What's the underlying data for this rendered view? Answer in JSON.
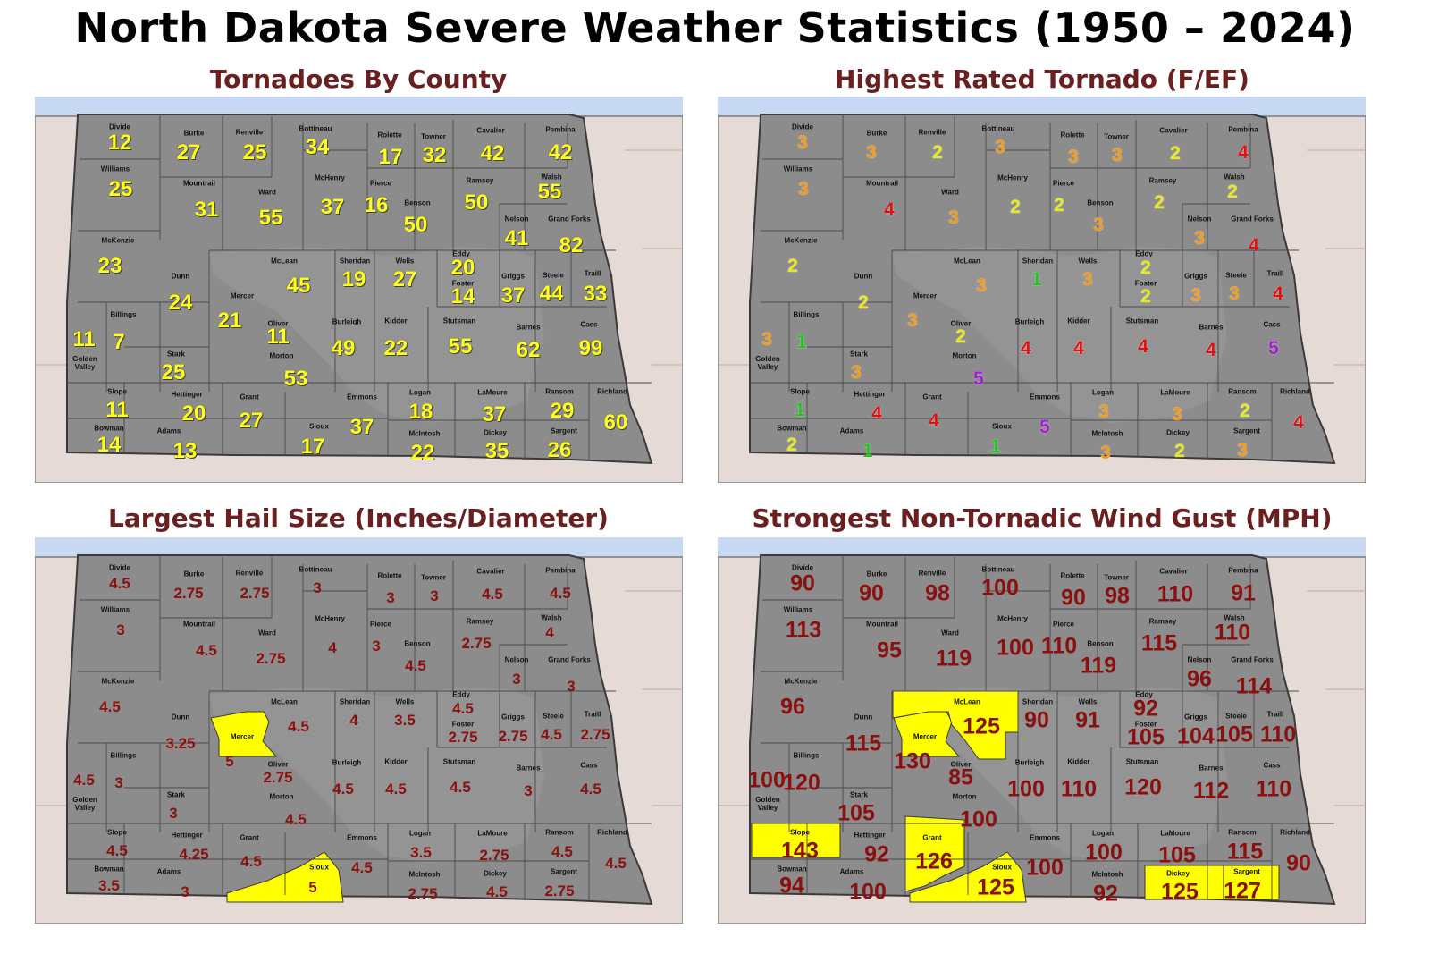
{
  "title": "North Dakota Severe Weather Statistics (1950 – 2024)",
  "colors": {
    "lake": "#c6d8f2",
    "land": "#e6dad6",
    "state": "#8c8c8c",
    "highlight": "#ffff00",
    "title_panel": "#6a2020",
    "tornado_count": "#ffff1a",
    "value_red": "#8b1010",
    "rating_1": "#22c522",
    "rating_2": "#e8e820",
    "rating_3": "#f29a1a",
    "rating_4": "#e01010",
    "rating_5": "#a020d0"
  },
  "panels": [
    {
      "id": "tornadoes",
      "title": "Tornadoes By County",
      "legend": "",
      "counties": [
        {
          "name": "Divide",
          "value": "12"
        },
        {
          "name": "Burke",
          "value": "27"
        },
        {
          "name": "Renville",
          "value": "25"
        },
        {
          "name": "Bottineau",
          "value": "34"
        },
        {
          "name": "Rolette",
          "value": "17"
        },
        {
          "name": "Towner",
          "value": "32"
        },
        {
          "name": "Cavalier",
          "value": "42"
        },
        {
          "name": "Pembina",
          "value": "42"
        },
        {
          "name": "Williams",
          "value": "25"
        },
        {
          "name": "Mountrail",
          "value": "31"
        },
        {
          "name": "Ward",
          "value": "55"
        },
        {
          "name": "McHenry",
          "value": "37"
        },
        {
          "name": "Pierce",
          "value": "16"
        },
        {
          "name": "Benson",
          "value": "50"
        },
        {
          "name": "Ramsey",
          "value": "50"
        },
        {
          "name": "Walsh",
          "value": "55"
        },
        {
          "name": "Nelson",
          "value": "41"
        },
        {
          "name": "Grand Forks",
          "value": "82"
        },
        {
          "name": "McKenzie",
          "value": "23"
        },
        {
          "name": "Dunn",
          "value": "24"
        },
        {
          "name": "Mercer",
          "value": "21"
        },
        {
          "name": "McLean",
          "value": "45"
        },
        {
          "name": "Sheridan",
          "value": "19"
        },
        {
          "name": "Wells",
          "value": "27"
        },
        {
          "name": "Eddy",
          "value": "20"
        },
        {
          "name": "Foster",
          "value": "14"
        },
        {
          "name": "Griggs",
          "value": "37"
        },
        {
          "name": "Steele",
          "value": "44"
        },
        {
          "name": "Traill",
          "value": "33"
        },
        {
          "name": "Golden Valley",
          "value": "11"
        },
        {
          "name": "Billings",
          "value": "7"
        },
        {
          "name": "Oliver",
          "value": "11"
        },
        {
          "name": "Burleigh",
          "value": "49"
        },
        {
          "name": "Kidder",
          "value": "22"
        },
        {
          "name": "Stutsman",
          "value": "55"
        },
        {
          "name": "Barnes",
          "value": "62"
        },
        {
          "name": "Cass",
          "value": "99"
        },
        {
          "name": "Stark",
          "value": "25"
        },
        {
          "name": "Morton",
          "value": "53"
        },
        {
          "name": "Slope",
          "value": "11"
        },
        {
          "name": "Hettinger",
          "value": "20"
        },
        {
          "name": "Grant",
          "value": "27"
        },
        {
          "name": "Emmons",
          "value": "37"
        },
        {
          "name": "Logan",
          "value": "18"
        },
        {
          "name": "LaMoure",
          "value": "37"
        },
        {
          "name": "Ransom",
          "value": "29"
        },
        {
          "name": "Richland",
          "value": "60"
        },
        {
          "name": "Bowman",
          "value": "14"
        },
        {
          "name": "Adams",
          "value": "13"
        },
        {
          "name": "Sioux",
          "value": "17"
        },
        {
          "name": "McIntosh",
          "value": "22"
        },
        {
          "name": "Dickey",
          "value": "35"
        },
        {
          "name": "Sargent",
          "value": "26"
        }
      ]
    },
    {
      "id": "rating",
      "title": "Highest Rated Tornado (F/EF)",
      "legend": "",
      "counties": [
        {
          "name": "Divide",
          "value": "3"
        },
        {
          "name": "Burke",
          "value": "3"
        },
        {
          "name": "Renville",
          "value": "2"
        },
        {
          "name": "Bottineau",
          "value": "3"
        },
        {
          "name": "Rolette",
          "value": "3"
        },
        {
          "name": "Towner",
          "value": "3"
        },
        {
          "name": "Cavalier",
          "value": "2"
        },
        {
          "name": "Pembina",
          "value": "4"
        },
        {
          "name": "Williams",
          "value": "3"
        },
        {
          "name": "Mountrail",
          "value": "4"
        },
        {
          "name": "Ward",
          "value": "3"
        },
        {
          "name": "McHenry",
          "value": "2"
        },
        {
          "name": "Pierce",
          "value": "2"
        },
        {
          "name": "Benson",
          "value": "3"
        },
        {
          "name": "Ramsey",
          "value": "2"
        },
        {
          "name": "Walsh",
          "value": "2"
        },
        {
          "name": "Nelson",
          "value": "3"
        },
        {
          "name": "Grand Forks",
          "value": "4"
        },
        {
          "name": "McKenzie",
          "value": "2"
        },
        {
          "name": "Dunn",
          "value": "2"
        },
        {
          "name": "Mercer",
          "value": "3"
        },
        {
          "name": "McLean",
          "value": "3"
        },
        {
          "name": "Sheridan",
          "value": "1"
        },
        {
          "name": "Wells",
          "value": "3"
        },
        {
          "name": "Eddy",
          "value": "2"
        },
        {
          "name": "Foster",
          "value": "2"
        },
        {
          "name": "Griggs",
          "value": "3"
        },
        {
          "name": "Steele",
          "value": "3"
        },
        {
          "name": "Traill",
          "value": "4"
        },
        {
          "name": "Golden Valley",
          "value": "3"
        },
        {
          "name": "Billings",
          "value": "1"
        },
        {
          "name": "Oliver",
          "value": "2"
        },
        {
          "name": "Burleigh",
          "value": "4"
        },
        {
          "name": "Kidder",
          "value": "4"
        },
        {
          "name": "Stutsman",
          "value": "4"
        },
        {
          "name": "Barnes",
          "value": "4"
        },
        {
          "name": "Cass",
          "value": "5"
        },
        {
          "name": "Stark",
          "value": "3"
        },
        {
          "name": "Morton",
          "value": "5"
        },
        {
          "name": "Slope",
          "value": "1"
        },
        {
          "name": "Hettinger",
          "value": "4"
        },
        {
          "name": "Grant",
          "value": "4"
        },
        {
          "name": "Emmons",
          "value": "5"
        },
        {
          "name": "Logan",
          "value": "3"
        },
        {
          "name": "LaMoure",
          "value": "3"
        },
        {
          "name": "Ransom",
          "value": "2"
        },
        {
          "name": "Richland",
          "value": "4"
        },
        {
          "name": "Bowman",
          "value": "2"
        },
        {
          "name": "Adams",
          "value": "1"
        },
        {
          "name": "Sioux",
          "value": "1"
        },
        {
          "name": "McIntosh",
          "value": "3"
        },
        {
          "name": "Dickey",
          "value": "2"
        },
        {
          "name": "Sargent",
          "value": "3"
        }
      ]
    },
    {
      "id": "hail",
      "title": "Largest Hail Size (Inches/Diameter)",
      "legend": "",
      "counties": [
        {
          "name": "Divide",
          "value": "4.5"
        },
        {
          "name": "Burke",
          "value": "2.75"
        },
        {
          "name": "Renville",
          "value": "2.75"
        },
        {
          "name": "Bottineau",
          "value": "3"
        },
        {
          "name": "Rolette",
          "value": "3"
        },
        {
          "name": "Towner",
          "value": "3"
        },
        {
          "name": "Cavalier",
          "value": "4.5"
        },
        {
          "name": "Pembina",
          "value": "4.5"
        },
        {
          "name": "Williams",
          "value": "3"
        },
        {
          "name": "Mountrail",
          "value": "4.5"
        },
        {
          "name": "Ward",
          "value": "2.75"
        },
        {
          "name": "McHenry",
          "value": "4"
        },
        {
          "name": "Pierce",
          "value": "3"
        },
        {
          "name": "Benson",
          "value": "4.5"
        },
        {
          "name": "Ramsey",
          "value": "2.75"
        },
        {
          "name": "Walsh",
          "value": "4"
        },
        {
          "name": "Nelson",
          "value": "3"
        },
        {
          "name": "Grand Forks",
          "value": "3"
        },
        {
          "name": "McKenzie",
          "value": "4.5"
        },
        {
          "name": "Dunn",
          "value": "3.25"
        },
        {
          "name": "Mercer",
          "value": "5"
        },
        {
          "name": "McLean",
          "value": "4.5"
        },
        {
          "name": "Sheridan",
          "value": "4"
        },
        {
          "name": "Wells",
          "value": "3.5"
        },
        {
          "name": "Eddy",
          "value": "4.5"
        },
        {
          "name": "Foster",
          "value": "2.75"
        },
        {
          "name": "Griggs",
          "value": "2.75"
        },
        {
          "name": "Steele",
          "value": "4.5"
        },
        {
          "name": "Traill",
          "value": "2.75"
        },
        {
          "name": "Golden Valley",
          "value": "4.5"
        },
        {
          "name": "Billings",
          "value": "3"
        },
        {
          "name": "Oliver",
          "value": "2.75"
        },
        {
          "name": "Burleigh",
          "value": "4.5"
        },
        {
          "name": "Kidder",
          "value": "4.5"
        },
        {
          "name": "Stutsman",
          "value": "4.5"
        },
        {
          "name": "Barnes",
          "value": "3"
        },
        {
          "name": "Cass",
          "value": "4.5"
        },
        {
          "name": "Stark",
          "value": "3"
        },
        {
          "name": "Morton",
          "value": "4.5"
        },
        {
          "name": "Slope",
          "value": "4.5"
        },
        {
          "name": "Hettinger",
          "value": "4.25"
        },
        {
          "name": "Grant",
          "value": "4.5"
        },
        {
          "name": "Emmons",
          "value": "4.5"
        },
        {
          "name": "Logan",
          "value": "3.5"
        },
        {
          "name": "LaMoure",
          "value": "2.75"
        },
        {
          "name": "Ransom",
          "value": "4.5"
        },
        {
          "name": "Richland",
          "value": "4.5"
        },
        {
          "name": "Bowman",
          "value": "3.5"
        },
        {
          "name": "Adams",
          "value": "3"
        },
        {
          "name": "Sioux",
          "value": "5"
        },
        {
          "name": "McIntosh",
          "value": "2.75"
        },
        {
          "name": "Dickey",
          "value": "4.5"
        },
        {
          "name": "Sargent",
          "value": "2.75"
        }
      ],
      "highlighted": [
        "Mercer",
        "Sioux"
      ]
    },
    {
      "id": "wind",
      "title": "Strongest Non-Tornadic Wind Gust (MPH)",
      "legend": "",
      "counties": [
        {
          "name": "Divide",
          "value": "90"
        },
        {
          "name": "Burke",
          "value": "90"
        },
        {
          "name": "Renville",
          "value": "98"
        },
        {
          "name": "Bottineau",
          "value": "100"
        },
        {
          "name": "Rolette",
          "value": "90"
        },
        {
          "name": "Towner",
          "value": "98"
        },
        {
          "name": "Cavalier",
          "value": "110"
        },
        {
          "name": "Pembina",
          "value": "91"
        },
        {
          "name": "Williams",
          "value": "113"
        },
        {
          "name": "Mountrail",
          "value": "95"
        },
        {
          "name": "Ward",
          "value": "119"
        },
        {
          "name": "McHenry",
          "value": "100"
        },
        {
          "name": "Pierce",
          "value": "110"
        },
        {
          "name": "Benson",
          "value": "119"
        },
        {
          "name": "Ramsey",
          "value": "115"
        },
        {
          "name": "Walsh",
          "value": "110"
        },
        {
          "name": "Nelson",
          "value": "96"
        },
        {
          "name": "Grand Forks",
          "value": "114"
        },
        {
          "name": "McKenzie",
          "value": "96"
        },
        {
          "name": "Dunn",
          "value": "115"
        },
        {
          "name": "Mercer",
          "value": "130"
        },
        {
          "name": "McLean",
          "value": "125"
        },
        {
          "name": "Sheridan",
          "value": "90"
        },
        {
          "name": "Wells",
          "value": "91"
        },
        {
          "name": "Eddy",
          "value": "92"
        },
        {
          "name": "Foster",
          "value": "105"
        },
        {
          "name": "Griggs",
          "value": "104"
        },
        {
          "name": "Steele",
          "value": "105"
        },
        {
          "name": "Traill",
          "value": "110"
        },
        {
          "name": "Golden Valley",
          "value": "100"
        },
        {
          "name": "Billings",
          "value": "120"
        },
        {
          "name": "Oliver",
          "value": "85"
        },
        {
          "name": "Burleigh",
          "value": "100"
        },
        {
          "name": "Kidder",
          "value": "110"
        },
        {
          "name": "Stutsman",
          "value": "120"
        },
        {
          "name": "Barnes",
          "value": "112"
        },
        {
          "name": "Cass",
          "value": "110"
        },
        {
          "name": "Stark",
          "value": "105"
        },
        {
          "name": "Morton",
          "value": "100"
        },
        {
          "name": "Slope",
          "value": "143"
        },
        {
          "name": "Hettinger",
          "value": "92"
        },
        {
          "name": "Grant",
          "value": "126"
        },
        {
          "name": "Emmons",
          "value": "100"
        },
        {
          "name": "Logan",
          "value": "100"
        },
        {
          "name": "LaMoure",
          "value": "105"
        },
        {
          "name": "Ransom",
          "value": "115"
        },
        {
          "name": "Richland",
          "value": "90"
        },
        {
          "name": "Bowman",
          "value": "94"
        },
        {
          "name": "Adams",
          "value": "100"
        },
        {
          "name": "Sioux",
          "value": "125"
        },
        {
          "name": "McIntosh",
          "value": "92"
        },
        {
          "name": "Dickey",
          "value": "125"
        },
        {
          "name": "Sargent",
          "value": "127"
        }
      ],
      "highlighted": [
        "Mercer",
        "McLean",
        "Slope",
        "Grant",
        "Sioux",
        "Dickey",
        "Sargent"
      ]
    }
  ]
}
